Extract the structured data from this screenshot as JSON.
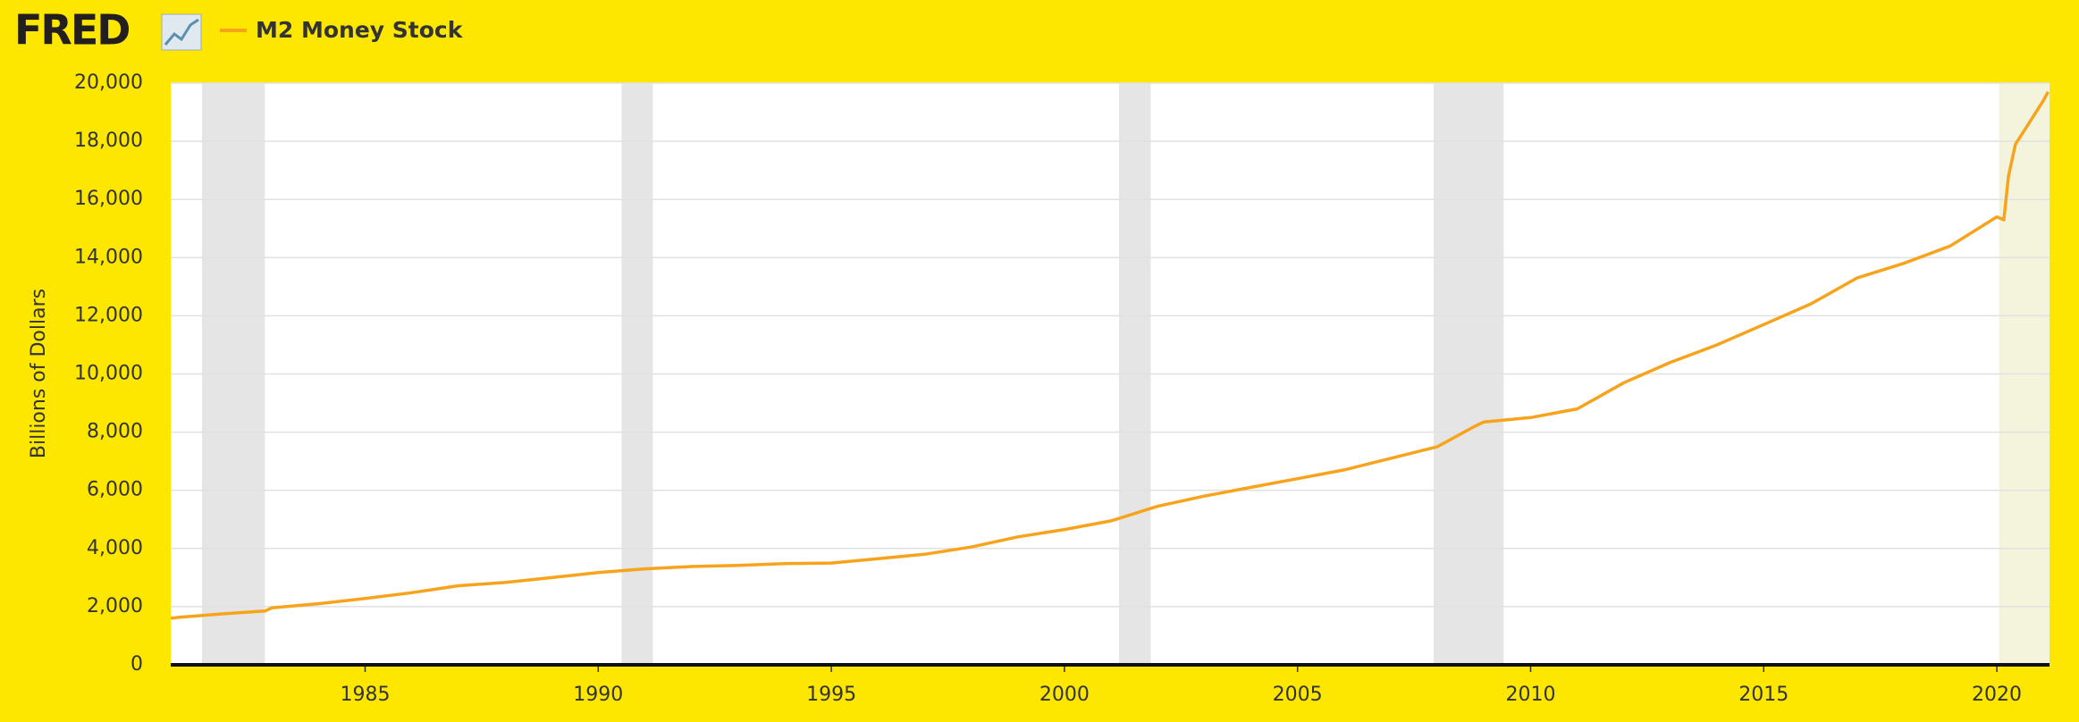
{
  "logo": "FRED",
  "chart_data": {
    "type": "line",
    "y_label": "Billions of Dollars",
    "xlim": [
      1980.83,
      2021.13
    ],
    "xticks": [
      1985,
      1990,
      1995,
      2000,
      2005,
      2010,
      2015,
      2020
    ],
    "ylim": [
      0,
      20000
    ],
    "yticks": [
      0,
      {
        "value": 2000,
        "label": "2,000"
      },
      {
        "value": 4000,
        "label": "4,000"
      },
      {
        "value": 6000,
        "label": "6,000"
      },
      {
        "value": 8000,
        "label": "8,000"
      },
      {
        "value": 10000,
        "label": "10,000"
      },
      {
        "value": 12000,
        "label": "12,000"
      },
      {
        "value": 14000,
        "label": "14,000"
      },
      {
        "value": 16000,
        "label": "16,000"
      },
      {
        "value": 18000,
        "label": "18,000"
      },
      {
        "value": 20000,
        "label": "20,000"
      }
    ],
    "grid": true,
    "recessions": [
      {
        "start": 1981.5,
        "end": 1982.85,
        "color": "#e5e5e5"
      },
      {
        "start": 1990.5,
        "end": 1991.17,
        "color": "#e5e5e5"
      },
      {
        "start": 2001.17,
        "end": 2001.85,
        "color": "#e5e5e5"
      },
      {
        "start": 2007.92,
        "end": 2009.42,
        "color": "#e5e5e5"
      },
      {
        "start": 2020.05,
        "end": 2021.13,
        "color": "#f4f4dc"
      }
    ],
    "x": [
      1980.83,
      1981,
      1982,
      1982.85,
      1983,
      1984,
      1985,
      1986,
      1987,
      1988,
      1989,
      1990,
      1991,
      1992,
      1993,
      1994,
      1995,
      1996,
      1997,
      1998,
      1999,
      2000,
      2001,
      2002,
      2003,
      2004,
      2005,
      2006,
      2007,
      2008,
      2008.8,
      2009,
      2010,
      2011,
      2012,
      2013,
      2014,
      2015,
      2016,
      2017,
      2018,
      2019,
      2020,
      2020.15,
      2020.25,
      2020.4,
      2020.6,
      2021,
      2021.1
    ],
    "series": [
      {
        "name": "M2 Money Stock",
        "color": "#f7a31c",
        "values": [
          1600,
          1630,
          1760,
          1850,
          1960,
          2100,
          2280,
          2480,
          2720,
          2830,
          3000,
          3170,
          3300,
          3380,
          3420,
          3480,
          3500,
          3650,
          3800,
          4050,
          4400,
          4650,
          4950,
          5450,
          5800,
          6100,
          6400,
          6700,
          7100,
          7500,
          8200,
          8350,
          8500,
          8800,
          9700,
          10400,
          11000,
          11700,
          12400,
          13300,
          13800,
          14400,
          15400,
          15300,
          16800,
          17900,
          18400,
          19400,
          19700
        ]
      }
    ]
  }
}
